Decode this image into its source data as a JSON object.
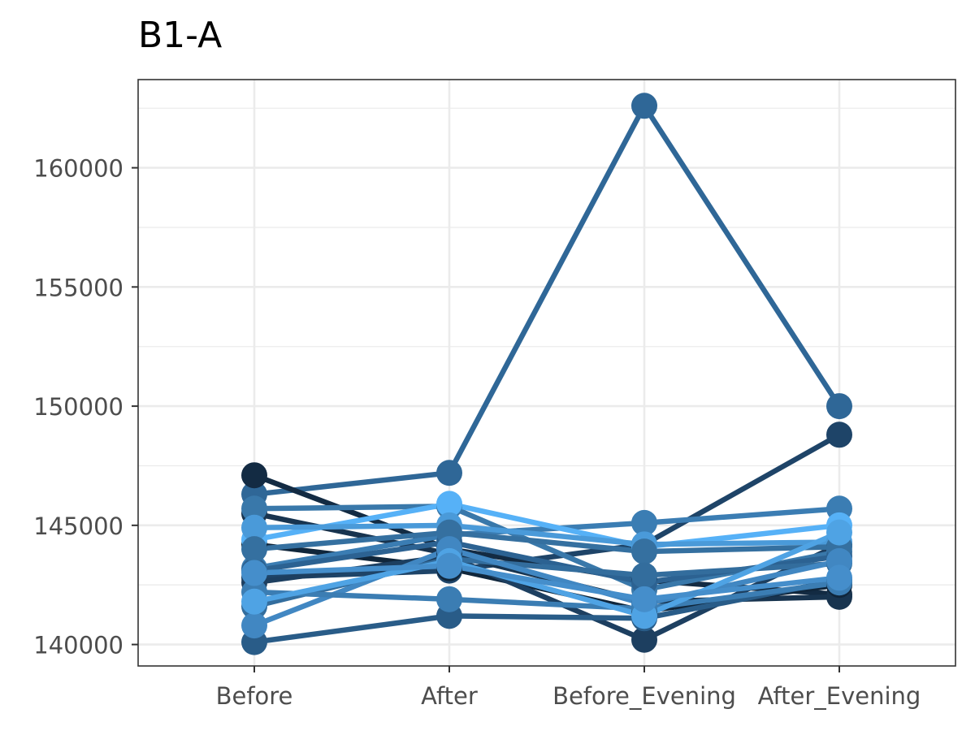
{
  "chart_data": {
    "type": "line",
    "title": "B1-A",
    "xlabel": "",
    "ylabel": "",
    "categories": [
      "Before",
      "After",
      "Before_Evening",
      "After_Evening"
    ],
    "y_ticks": [
      140000,
      145000,
      150000,
      155000,
      160000
    ],
    "y_tick_labels": [
      "140000",
      "145000",
      "150000",
      "155000",
      "160000"
    ],
    "ylim": [
      139100,
      163700
    ],
    "grid": true,
    "legend": "none",
    "series": [
      {
        "values": [
          146300,
          147200,
          162600,
          150000
        ],
        "color": "#2f6797"
      },
      {
        "values": [
          142800,
          143100,
          144200,
          148800
        ],
        "color": "#1e4468"
      },
      {
        "values": [
          147100,
          144000,
          142700,
          142100
        ],
        "color": "#132b43"
      },
      {
        "values": [
          145500,
          143800,
          141800,
          142000
        ],
        "color": "#18344f"
      },
      {
        "values": [
          144200,
          143200,
          141400,
          142500
        ],
        "color": "#10263b"
      },
      {
        "values": [
          142600,
          143700,
          140200,
          144200
        ],
        "color": "#1d3f60"
      },
      {
        "values": [
          140100,
          141200,
          141100,
          142700
        ],
        "color": "#295c88"
      },
      {
        "values": [
          145700,
          145800,
          142300,
          143900
        ],
        "color": "#3978aa"
      },
      {
        "values": [
          143200,
          144600,
          145100,
          145700
        ],
        "color": "#3b7db3"
      },
      {
        "values": [
          144400,
          145900,
          144100,
          145000
        ],
        "color": "#56b1f7"
      },
      {
        "values": [
          144900,
          145000,
          144200,
          144300
        ],
        "color": "#4a9ad9"
      },
      {
        "values": [
          143100,
          144300,
          142600,
          143700
        ],
        "color": "#2c6292"
      },
      {
        "values": [
          144000,
          144700,
          143900,
          144100
        ],
        "color": "#3570a0"
      },
      {
        "values": [
          141600,
          143600,
          142900,
          143400
        ],
        "color": "#336d9d"
      },
      {
        "values": [
          140800,
          144000,
          141700,
          143500
        ],
        "color": "#4187c2"
      },
      {
        "values": [
          142200,
          141900,
          141500,
          142600
        ],
        "color": "#3b7db3"
      },
      {
        "values": [
          141800,
          143500,
          141200,
          144700
        ],
        "color": "#4fa3e4"
      },
      {
        "values": [
          143000,
          143300,
          141900,
          142800
        ],
        "color": "#458ecb"
      }
    ]
  }
}
